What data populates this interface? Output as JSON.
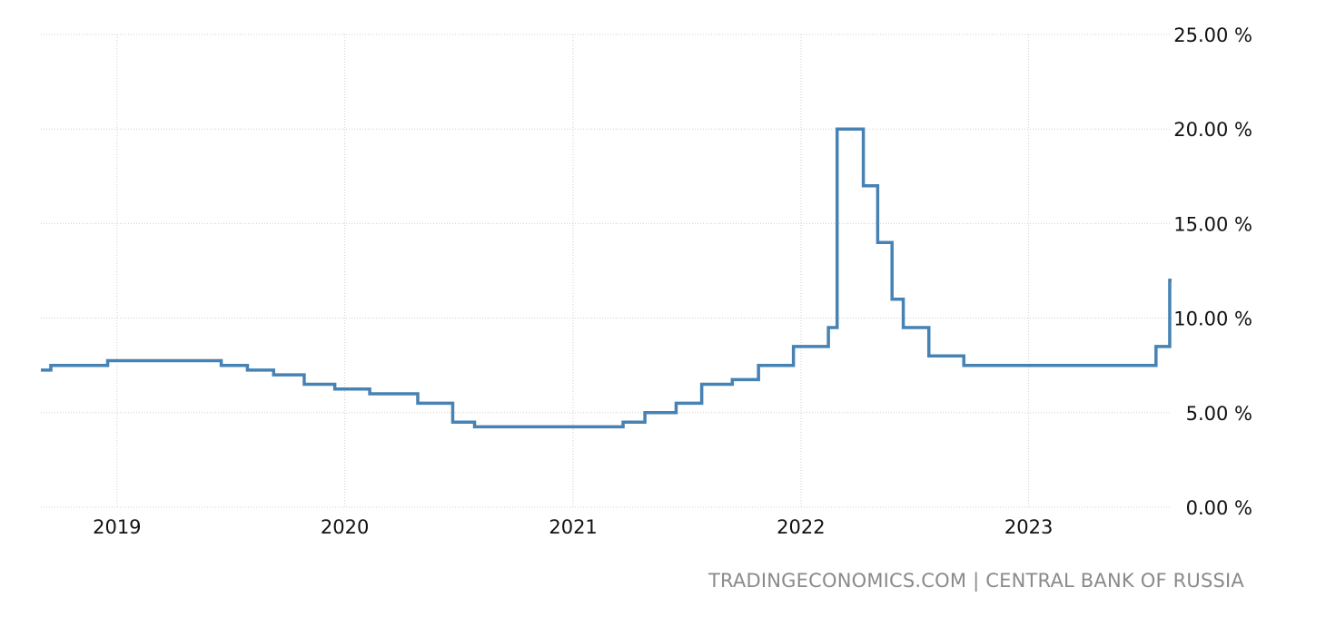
{
  "chart_data": {
    "type": "line",
    "step": true,
    "title": "",
    "xlabel": "",
    "ylabel": "",
    "ylim": [
      0,
      25
    ],
    "xlim": [
      "2018-09-01",
      "2023-08-18"
    ],
    "y_ticks": [
      0,
      5,
      10,
      15,
      20,
      25
    ],
    "y_tick_suffix": " %",
    "x_ticks": [
      "2019",
      "2020",
      "2021",
      "2022",
      "2023"
    ],
    "grid": true,
    "line_color": "#4682b4",
    "series": [
      {
        "points": [
          [
            "2018-09-01",
            7.25
          ],
          [
            "2018-09-17",
            7.5
          ],
          [
            "2018-12-17",
            7.75
          ],
          [
            "2019-06-17",
            7.5
          ],
          [
            "2019-07-29",
            7.25
          ],
          [
            "2019-09-09",
            7.0
          ],
          [
            "2019-10-28",
            6.5
          ],
          [
            "2019-12-16",
            6.25
          ],
          [
            "2020-02-10",
            6.0
          ],
          [
            "2020-04-27",
            5.5
          ],
          [
            "2020-06-22",
            4.5
          ],
          [
            "2020-07-27",
            4.25
          ],
          [
            "2021-03-22",
            4.5
          ],
          [
            "2021-04-26",
            5.0
          ],
          [
            "2021-06-15",
            5.5
          ],
          [
            "2021-07-26",
            6.5
          ],
          [
            "2021-09-13",
            6.75
          ],
          [
            "2021-10-25",
            7.5
          ],
          [
            "2021-12-20",
            8.5
          ],
          [
            "2022-02-14",
            9.5
          ],
          [
            "2022-02-28",
            20.0
          ],
          [
            "2022-04-11",
            17.0
          ],
          [
            "2022-05-04",
            14.0
          ],
          [
            "2022-05-27",
            11.0
          ],
          [
            "2022-06-14",
            9.5
          ],
          [
            "2022-07-25",
            8.0
          ],
          [
            "2022-09-19",
            7.5
          ],
          [
            "2023-07-24",
            8.5
          ],
          [
            "2023-08-15",
            12.0
          ],
          [
            "2023-08-18",
            12.0
          ]
        ]
      }
    ]
  },
  "source_text": "TRADINGECONOMICS.COM | CENTRAL BANK OF RUSSIA"
}
